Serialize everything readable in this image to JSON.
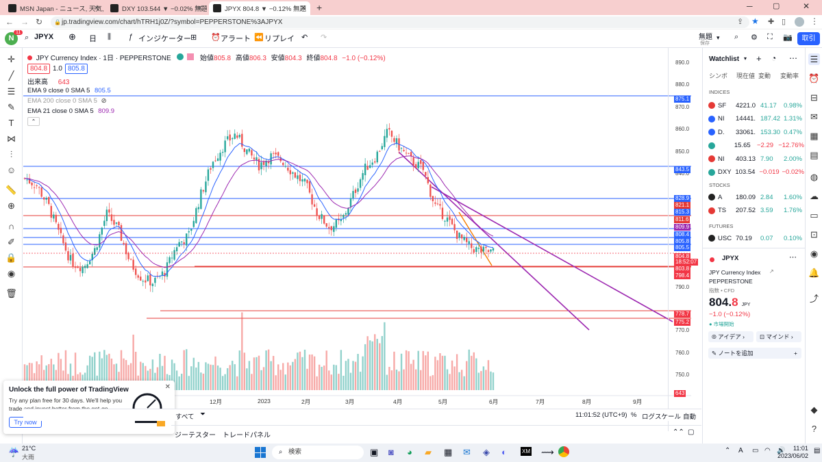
{
  "browser": {
    "tabs": [
      {
        "title": "MSN Japan - ニュース, 天気, メール",
        "fav": "#222"
      },
      {
        "title": "DXY 103.544 ▼ −0.02% 無題",
        "fav": "#222"
      },
      {
        "title": "JPYX 804.8 ▼ −0.12% 無題",
        "fav": "#222"
      }
    ],
    "url": "jp.tradingview.com/chart/hTRH1j0Z/?symbol=PEPPERSTONE%3AJPYX"
  },
  "toolbar": {
    "avatar": "N",
    "notif": "11",
    "symbol": "JPYX",
    "interval": "日",
    "indicators": "インジケーター",
    "alert": "アラート",
    "replay": "リプレイ",
    "layout_name": "無題",
    "layout_sub": "保存",
    "trade": "取引"
  },
  "legend": {
    "title": "JPY Currency Index · 1日 · PEPPERSTONE",
    "o_lbl": "始値",
    "o": "805.8",
    "h_lbl": "高値",
    "h": "806.3",
    "l_lbl": "安値",
    "l": "804.3",
    "c_lbl": "終値",
    "c": "804.8",
    "chg": "−1.0 (−0.12%)",
    "bid": "804.8",
    "spread": "1.0",
    "ask": "805.8",
    "vol_lbl": "出来高",
    "vol": "643",
    "ema9": "EMA 9 close 0 SMA 5",
    "ema9_val": "805.5",
    "ema200": "EMA 200 close 0 SMA 5",
    "ema21": "EMA 21 close 0 SMA 5",
    "ema21_val": "809.9"
  },
  "chart_data": {
    "type": "candlestick",
    "title": "JPY Currency Index · 1日 · PEPPERSTONE",
    "y_ticks": [
      "890.0",
      "880.0",
      "870.0",
      "860.0",
      "850.0",
      "840.0",
      "790.0",
      "770.0",
      "760.0",
      "750.0"
    ],
    "x_ticks": [
      "12月",
      "2023",
      "2月",
      "3月",
      "4月",
      "5月",
      "6月",
      "7月",
      "8月",
      "9月"
    ],
    "price_labels": [
      {
        "v": "875.1",
        "c": "#2962ff"
      },
      {
        "v": "843.5",
        "c": "#2962ff"
      },
      {
        "v": "828.9",
        "c": "#2962ff"
      },
      {
        "v": "821.1",
        "c": "#e53935"
      },
      {
        "v": "815.3",
        "c": "#2962ff"
      },
      {
        "v": "811.6",
        "c": "#e53935"
      },
      {
        "v": "809.9",
        "c": "#9c27b0"
      },
      {
        "v": "808.4",
        "c": "#2962ff"
      },
      {
        "v": "805.8",
        "c": "#2962ff"
      },
      {
        "v": "805.5",
        "c": "#2962ff"
      },
      {
        "v": "804.8",
        "c": "#f23645"
      },
      {
        "v": "18:52:07",
        "c": "#f23645"
      },
      {
        "v": "803.8",
        "c": "#f23645"
      },
      {
        "v": "798.4",
        "c": "#f23645"
      },
      {
        "v": "778.7",
        "c": "#f23645"
      },
      {
        "v": "775.2",
        "c": "#f23645"
      },
      {
        "v": "643",
        "c": "#f23645"
      }
    ],
    "last_price": 804.8,
    "volume_last": 643
  },
  "bottom": {
    "range_all": "すべて",
    "time": "11:01:52 (UTC+9)",
    "pct": "%",
    "log": "ログスケール",
    "auto": "自動",
    "tab1": "ジーテスター",
    "tab2": "トレードパネル"
  },
  "promo": {
    "title": "Unlock the full power of TradingView",
    "body": "Try any plan free for 30 days. We'll help you trade and invest better from the get-go.",
    "btn": "Try Now"
  },
  "watchlist": {
    "title": "Watchlist",
    "cols": [
      "シンボ",
      "現在値",
      "変動",
      "変動率"
    ],
    "indices_lbl": "INDICES",
    "stocks_lbl": "STOCKS",
    "futures_lbl": "FUTURES",
    "indices": [
      {
        "sym": "SF",
        "last": "4221.0",
        "chg": "41.17",
        "pct": "0.98%",
        "up": true,
        "ic": "#e53935"
      },
      {
        "sym": "NI",
        "last": "14441.",
        "chg": "187.42",
        "pct": "1.31%",
        "up": true,
        "ic": "#2962ff"
      },
      {
        "sym": "D.",
        "last": "33061.",
        "chg": "153.30",
        "pct": "0.47%",
        "up": true,
        "ic": "#2962ff"
      },
      {
        "sym": "",
        "last": "15.65",
        "chg": "−2.29",
        "pct": "−12.76%",
        "up": false,
        "ic": "#26a69a"
      },
      {
        "sym": "NI",
        "last": "403.13",
        "chg": "7.90",
        "pct": "2.00%",
        "up": true,
        "ic": "#e53935"
      },
      {
        "sym": "DXY",
        "last": "103.54",
        "chg": "−0.019",
        "pct": "−0.02%",
        "up": false,
        "ic": "#26a69a"
      }
    ],
    "stocks": [
      {
        "sym": "A",
        "last": "180.09",
        "chg": "2.84",
        "pct": "1.60%",
        "up": true,
        "ic": "#222"
      },
      {
        "sym": "TS",
        "last": "207.52",
        "chg": "3.59",
        "pct": "1.76%",
        "up": true,
        "ic": "#e53935"
      }
    ],
    "futures": [
      {
        "sym": "USC",
        "last": "70.19",
        "chg": "0.07",
        "pct": "0.10%",
        "up": true,
        "ic": "#222"
      }
    ],
    "detail": {
      "sym": "JPYX",
      "name": "JPY Currency Index",
      "exch": "PEPPERSTONE",
      "type": "指数 • CFD",
      "price_main": "804.",
      "price_dec": "8",
      "cur": "JPY",
      "chg": "−1.0 (−0.12%)",
      "status": "市場開始",
      "ideas": "アイデア",
      "minds": "マインド",
      "note": "ノートを追加"
    }
  },
  "taskbar": {
    "temp": "21°C",
    "weather": "大雨",
    "search": "検索",
    "time": "11:01",
    "date": "2023/06/02"
  }
}
